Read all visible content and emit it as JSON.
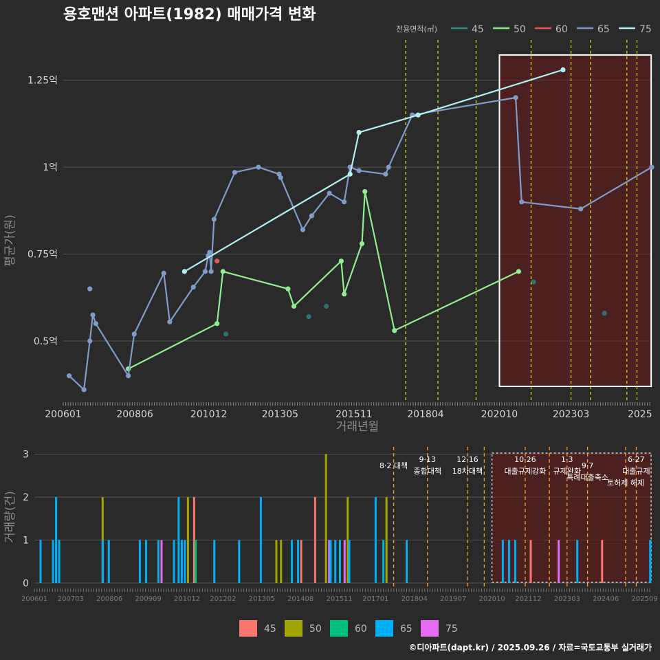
{
  "title": "용호맨션 아파트(1982) 매매가격 변화",
  "footer": "©디아파트(dapt.kr) / 2025.09.26 / 자료=국토교통부 실거래가",
  "legend_top": {
    "title": "전용면적(㎡)",
    "items": [
      {
        "label": "45",
        "color": "#2e8b8b"
      },
      {
        "label": "50",
        "color": "#90ee90"
      },
      {
        "label": "60",
        "color": "#e05a5a"
      },
      {
        "label": "65",
        "color": "#7f9cc8"
      },
      {
        "label": "75",
        "color": "#b0f0f0"
      }
    ]
  },
  "legend_bottom": {
    "items": [
      {
        "label": "45",
        "color": "#f8766d"
      },
      {
        "label": "50",
        "color": "#a3a500"
      },
      {
        "label": "60",
        "color": "#00bf7d"
      },
      {
        "label": "65",
        "color": "#00b0f6"
      },
      {
        "label": "75",
        "color": "#e76bf3"
      }
    ]
  },
  "chart_data": [
    {
      "type": "line",
      "title": "용호맨션 아파트(1982) 매매가격 변화",
      "xlabel": "거래년월",
      "ylabel": "평균가(원)",
      "x_range": [
        2006.0,
        2025.9
      ],
      "ylim": [
        0.33,
        1.37
      ],
      "x_ticks": [
        {
          "label": "200601",
          "value": 2006.0
        },
        {
          "label": "200806",
          "value": 2008.42
        },
        {
          "label": "201012",
          "value": 2010.92
        },
        {
          "label": "201305",
          "value": 2013.33
        },
        {
          "label": "201511",
          "value": 2015.83
        },
        {
          "label": "201804",
          "value": 2018.25
        },
        {
          "label": "202010",
          "value": 2020.75
        },
        {
          "label": "202303",
          "value": 2023.17
        },
        {
          "label": "2025",
          "value": 2025.5
        }
      ],
      "y_ticks": [
        {
          "label": "0.5억",
          "value": 0.5
        },
        {
          "label": "0.75억",
          "value": 0.75
        },
        {
          "label": "1억",
          "value": 1.0
        },
        {
          "label": "1.25억",
          "value": 1.25
        }
      ],
      "event_lines": [
        2017.58,
        2018.67,
        2019.96,
        2021.82,
        2023.17,
        2023.83,
        2025.06,
        2025.4
      ],
      "highlight_range": [
        2020.75,
        2025.88
      ],
      "series": [
        {
          "name": "45",
          "connected": false,
          "points": [
            [
              2011.5,
              0.52
            ],
            [
              2014.3,
              0.57
            ],
            [
              2014.9,
              0.6
            ],
            [
              2021.9,
              0.67
            ],
            [
              2024.3,
              0.58
            ]
          ]
        },
        {
          "name": "50",
          "connected": true,
          "points": [
            [
              2008.2,
              0.42
            ],
            [
              2011.2,
              0.55
            ],
            [
              2011.4,
              0.7
            ],
            [
              2013.6,
              0.65
            ],
            [
              2013.8,
              0.6
            ],
            [
              2015.4,
              0.73
            ],
            [
              2015.5,
              0.635
            ],
            [
              2016.1,
              0.78
            ],
            [
              2016.2,
              0.93
            ],
            [
              2017.2,
              0.53
            ],
            [
              2021.4,
              0.7
            ]
          ]
        },
        {
          "name": "60",
          "connected": false,
          "points": [
            [
              2011.2,
              0.73
            ]
          ]
        },
        {
          "name": "65",
          "connected": true,
          "points": [
            [
              2006.2,
              0.4
            ],
            [
              2006.7,
              0.36
            ],
            [
              2006.9,
              0.5
            ],
            [
              2007.0,
              0.575
            ],
            [
              2007.1,
              0.55
            ],
            [
              2008.2,
              0.4
            ],
            [
              2008.4,
              0.52
            ],
            [
              2009.4,
              0.695
            ],
            [
              2009.6,
              0.555
            ],
            [
              2010.4,
              0.655
            ],
            [
              2010.8,
              0.7
            ],
            [
              2010.9,
              0.745
            ],
            [
              2010.95,
              0.755
            ],
            [
              2011.0,
              0.7
            ],
            [
              2011.1,
              0.85
            ],
            [
              2011.8,
              0.985
            ],
            [
              2012.6,
              1.0
            ],
            [
              2013.3,
              0.98
            ],
            [
              2013.35,
              0.97
            ],
            [
              2014.1,
              0.82
            ],
            [
              2014.4,
              0.86
            ],
            [
              2015.0,
              0.925
            ],
            [
              2015.5,
              0.9
            ],
            [
              2015.7,
              1.0
            ],
            [
              2016.0,
              0.99
            ],
            [
              2016.9,
              0.98
            ],
            [
              2017.0,
              1.0
            ],
            [
              2017.8,
              1.15
            ],
            [
              2021.3,
              1.2
            ],
            [
              2021.5,
              0.9
            ],
            [
              2023.5,
              0.88
            ],
            [
              2025.9,
              1.0
            ]
          ]
        },
        {
          "name": "65-single",
          "connected": false,
          "points": [
            [
              2006.9,
              0.65
            ]
          ]
        },
        {
          "name": "75",
          "connected": true,
          "points": [
            [
              2010.1,
              0.7
            ],
            [
              2015.7,
              0.98
            ],
            [
              2016.0,
              1.1
            ],
            [
              2018.0,
              1.15
            ],
            [
              2022.9,
              1.28
            ]
          ]
        }
      ]
    },
    {
      "type": "bar",
      "xlabel": "",
      "ylabel": "거래량(건)",
      "x_range": [
        2006.0,
        2025.9
      ],
      "ylim": [
        0,
        3.2
      ],
      "y_ticks": [
        0,
        1,
        2,
        3
      ],
      "x_ticks": [
        {
          "label": "200601",
          "value": 2006.0
        },
        {
          "label": "200703",
          "value": 2007.17
        },
        {
          "label": "200806",
          "value": 2008.42
        },
        {
          "label": "200909",
          "value": 2009.67
        },
        {
          "label": "201012",
          "value": 2010.92
        },
        {
          "label": "201202",
          "value": 2012.08
        },
        {
          "label": "201305",
          "value": 2013.33
        },
        {
          "label": "201408",
          "value": 2014.58
        },
        {
          "label": "201511",
          "value": 2015.83
        },
        {
          "label": "201701",
          "value": 2017.0
        },
        {
          "label": "201804",
          "value": 2018.25
        },
        {
          "label": "201907",
          "value": 2019.5
        },
        {
          "label": "202010",
          "value": 2020.75
        },
        {
          "label": "202112",
          "value": 2021.92
        },
        {
          "label": "202303",
          "value": 2023.17
        },
        {
          "label": "202406",
          "value": 2024.42
        },
        {
          "label": "202509",
          "value": 2025.67
        }
      ],
      "event_lines": [
        2017.58,
        2018.67,
        2019.96,
        2020.5,
        2021.82,
        2022.6,
        2023.17,
        2023.83,
        2025.06,
        2025.4
      ],
      "highlight_range": [
        2020.75,
        2025.88
      ],
      "annotations": [
        {
          "x": 2017.58,
          "lines": [
            "8·2 대책"
          ],
          "row": 1
        },
        {
          "x": 2018.67,
          "lines": [
            "9·13",
            "종합대책"
          ],
          "row": 0
        },
        {
          "x": 2019.96,
          "lines": [
            "12·16",
            "18차대책"
          ],
          "row": 0
        },
        {
          "x": 2021.82,
          "lines": [
            "10·26",
            "대출규제강화"
          ],
          "row": 0
        },
        {
          "x": 2023.17,
          "lines": [
            "1·3",
            "규제완화"
          ],
          "row": 0
        },
        {
          "x": 2023.83,
          "lines": [
            "9·7",
            "특례대출축소"
          ],
          "row": 1
        },
        {
          "x": 2025.06,
          "lines": [
            "토허제 해제"
          ],
          "row": 2
        },
        {
          "x": 2025.4,
          "lines": [
            "6·27",
            "대출규제"
          ],
          "row": 0
        }
      ],
      "bars": [
        {
          "x": 2006.2,
          "v": 1,
          "s": "65"
        },
        {
          "x": 2006.6,
          "v": 1,
          "s": "65"
        },
        {
          "x": 2006.7,
          "v": 2,
          "s": "65"
        },
        {
          "x": 2006.8,
          "v": 1,
          "s": "65"
        },
        {
          "x": 2008.2,
          "v": 2,
          "s": "50"
        },
        {
          "x": 2008.2,
          "v": 1,
          "s": "65"
        },
        {
          "x": 2008.4,
          "v": 1,
          "s": "65"
        },
        {
          "x": 2009.4,
          "v": 1,
          "s": "65"
        },
        {
          "x": 2009.6,
          "v": 1,
          "s": "65"
        },
        {
          "x": 2010.1,
          "v": 1,
          "s": "75"
        },
        {
          "x": 2010.0,
          "v": 1,
          "s": "65"
        },
        {
          "x": 2010.5,
          "v": 1,
          "s": "65"
        },
        {
          "x": 2010.65,
          "v": 2,
          "s": "65"
        },
        {
          "x": 2010.75,
          "v": 1,
          "s": "65"
        },
        {
          "x": 2010.85,
          "v": 1,
          "s": "65"
        },
        {
          "x": 2010.95,
          "v": 2,
          "s": "50"
        },
        {
          "x": 2011.15,
          "v": 2,
          "s": "45"
        },
        {
          "x": 2011.2,
          "v": 1,
          "s": "60"
        },
        {
          "x": 2011.8,
          "v": 1,
          "s": "65"
        },
        {
          "x": 2012.6,
          "v": 1,
          "s": "65"
        },
        {
          "x": 2013.3,
          "v": 2,
          "s": "65"
        },
        {
          "x": 2013.8,
          "v": 1,
          "s": "50"
        },
        {
          "x": 2013.95,
          "v": 1,
          "s": "50"
        },
        {
          "x": 2014.3,
          "v": 1,
          "s": "65"
        },
        {
          "x": 2014.5,
          "v": 1,
          "s": "65"
        },
        {
          "x": 2014.6,
          "v": 1,
          "s": "45"
        },
        {
          "x": 2015.05,
          "v": 2,
          "s": "45"
        },
        {
          "x": 2015.4,
          "v": 3,
          "s": "50"
        },
        {
          "x": 2015.5,
          "v": 1,
          "s": "75"
        },
        {
          "x": 2015.55,
          "v": 1,
          "s": "65"
        },
        {
          "x": 2015.7,
          "v": 1,
          "s": "65"
        },
        {
          "x": 2015.85,
          "v": 1,
          "s": "65"
        },
        {
          "x": 2016.0,
          "v": 1,
          "s": "75"
        },
        {
          "x": 2016.1,
          "v": 2,
          "s": "50"
        },
        {
          "x": 2016.15,
          "v": 1,
          "s": "65"
        },
        {
          "x": 2017.0,
          "v": 2,
          "s": "65"
        },
        {
          "x": 2017.25,
          "v": 1,
          "s": "65"
        },
        {
          "x": 2017.35,
          "v": 2,
          "s": "50"
        },
        {
          "x": 2018.0,
          "v": 1,
          "s": "65"
        },
        {
          "x": 2021.1,
          "v": 1,
          "s": "65"
        },
        {
          "x": 2021.3,
          "v": 1,
          "s": "65"
        },
        {
          "x": 2021.5,
          "v": 1,
          "s": "65"
        },
        {
          "x": 2022.0,
          "v": 1,
          "s": "45"
        },
        {
          "x": 2022.9,
          "v": 1,
          "s": "75"
        },
        {
          "x": 2023.5,
          "v": 1,
          "s": "65"
        },
        {
          "x": 2024.3,
          "v": 1,
          "s": "45"
        },
        {
          "x": 2025.85,
          "v": 1,
          "s": "65"
        }
      ]
    }
  ]
}
